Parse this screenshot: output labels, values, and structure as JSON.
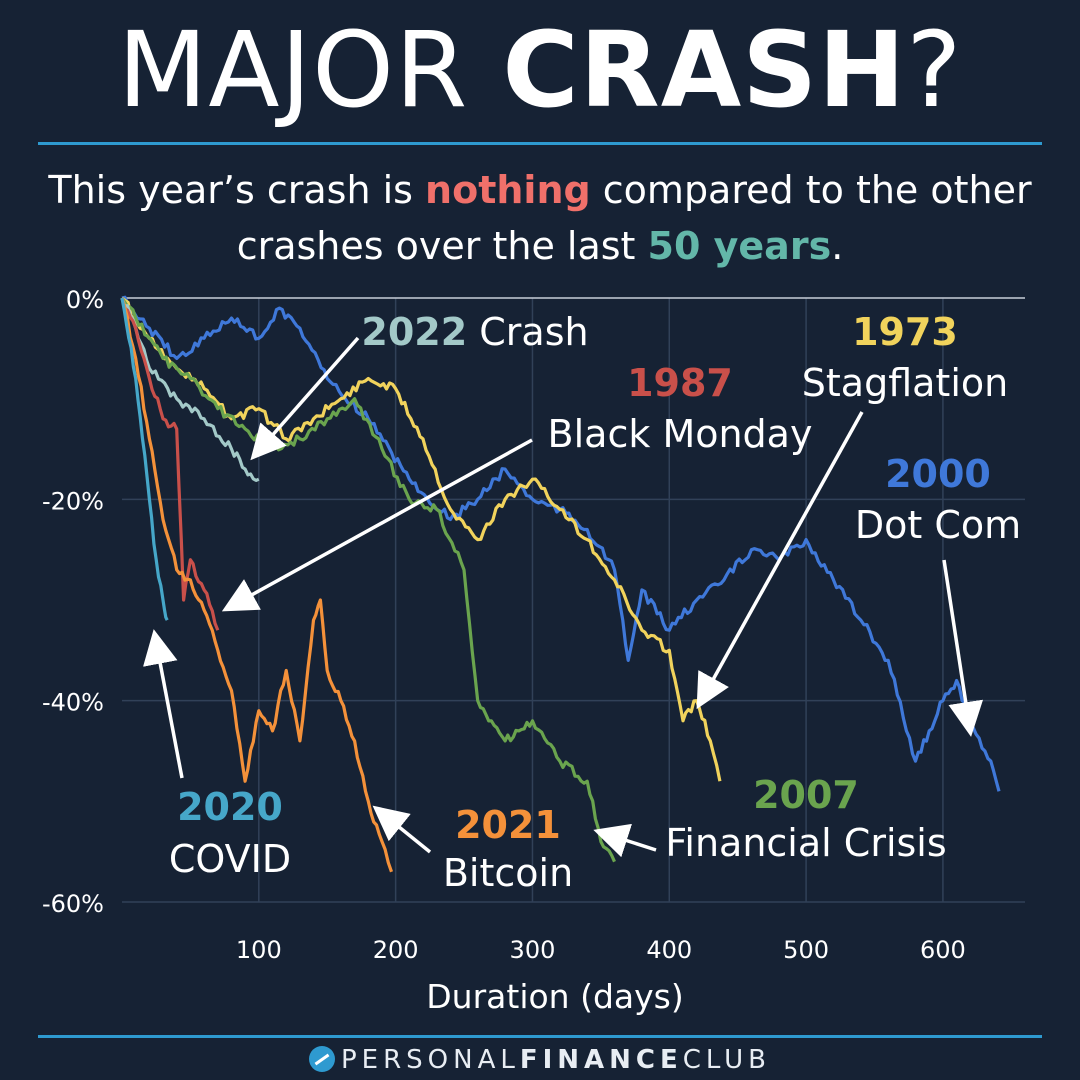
{
  "header": {
    "title_light": "MAJOR ",
    "title_bold": "CRASH",
    "title_mark": "?",
    "subtitle_1": "This year’s crash is ",
    "subtitle_highlight": "nothing",
    "subtitle_2": " compared to the other",
    "subtitle_3": "crashes over the last ",
    "subtitle_years": "50 years",
    "subtitle_end": "."
  },
  "footer": {
    "brand_light": "PERSONAL",
    "brand_bold": "FINANCE",
    "brand_end": "CLUB"
  },
  "chart_data": {
    "type": "line",
    "xlabel": "Duration (days)",
    "ylabel": "",
    "xlim": [
      0,
      660
    ],
    "ylim": [
      -60,
      0
    ],
    "x_ticks": [
      100,
      200,
      300,
      400,
      500,
      600
    ],
    "y_ticks": [
      0,
      -20,
      -40,
      -60
    ],
    "y_tick_labels": [
      "0%",
      "-20%",
      "-40%",
      "-60%"
    ],
    "grid": true,
    "series": [
      {
        "name": "2000 Dot Com",
        "year": "2000",
        "label": "Dot Com",
        "color": "#3f78d9",
        "x": [
          0,
          20,
          40,
          60,
          80,
          100,
          115,
          130,
          150,
          180,
          210,
          240,
          260,
          280,
          300,
          320,
          340,
          360,
          370,
          380,
          400,
          420,
          440,
          460,
          480,
          500,
          520,
          540,
          560,
          580,
          590,
          600,
          610,
          620,
          635,
          641
        ],
        "y": [
          0,
          -3,
          -6,
          -4,
          -2,
          -4,
          -1,
          -3,
          -8,
          -12,
          -18,
          -22,
          -20,
          -17,
          -20,
          -21,
          -23,
          -27,
          -36,
          -29,
          -33,
          -30,
          -28,
          -25,
          -26,
          -24,
          -28,
          -32,
          -36,
          -46,
          -43,
          -40,
          -38,
          -42,
          -46,
          -49
        ]
      },
      {
        "name": "1973 Stagflation",
        "year": "1973",
        "label": "Stagflation",
        "color": "#f1d35c",
        "x": [
          0,
          20,
          40,
          60,
          80,
          100,
          120,
          140,
          160,
          180,
          200,
          220,
          240,
          260,
          280,
          300,
          320,
          340,
          360,
          380,
          400,
          410,
          420,
          430,
          437
        ],
        "y": [
          0,
          -4,
          -7,
          -9,
          -12,
          -11,
          -14,
          -12,
          -10,
          -8,
          -9,
          -14,
          -21,
          -24,
          -20,
          -18,
          -21,
          -24,
          -28,
          -33,
          -35,
          -42,
          -40,
          -44,
          -48
        ]
      },
      {
        "name": "2007 Financial Crisis",
        "year": "2007",
        "label": "Financial Crisis",
        "color": "#6aa44e",
        "x": [
          0,
          10,
          30,
          50,
          70,
          90,
          110,
          130,
          150,
          170,
          190,
          210,
          230,
          250,
          260,
          270,
          280,
          290,
          300,
          320,
          340,
          350,
          360
        ],
        "y": [
          0,
          -2,
          -6,
          -8,
          -11,
          -13,
          -15,
          -14,
          -12,
          -10,
          -15,
          -20,
          -21,
          -27,
          -40,
          -42,
          -44,
          -43,
          -42,
          -46,
          -48,
          -54,
          -56
        ]
      },
      {
        "name": "2022 Crash",
        "year": "2022",
        "label": "Crash",
        "color": "#a3c9c8",
        "x": [
          0,
          10,
          20,
          40,
          60,
          80,
          90,
          100
        ],
        "y": [
          0,
          -3,
          -7,
          -10,
          -12,
          -15,
          -17,
          -18
        ]
      },
      {
        "name": "1987 Black Monday",
        "year": "1987",
        "label": "Black Monday",
        "color": "#c9504a",
        "x": [
          0,
          10,
          20,
          30,
          40,
          45,
          50,
          60,
          70
        ],
        "y": [
          0,
          -3,
          -8,
          -12,
          -13,
          -30,
          -26,
          -29,
          -33
        ]
      },
      {
        "name": "2021 Bitcoin",
        "year": "2021",
        "label": "Bitcoin",
        "color": "#f4913a",
        "x": [
          0,
          10,
          20,
          30,
          40,
          50,
          60,
          70,
          80,
          90,
          100,
          110,
          120,
          130,
          140,
          145,
          150,
          160,
          170,
          180,
          190,
          197
        ],
        "y": [
          0,
          -6,
          -14,
          -22,
          -27,
          -28,
          -31,
          -35,
          -39,
          -48,
          -41,
          -43,
          -37,
          -44,
          -32,
          -30,
          -37,
          -40,
          -44,
          -50,
          -54,
          -57
        ]
      },
      {
        "name": "2020 COVID",
        "year": "2020",
        "label": "COVID",
        "color": "#46a7c9",
        "x": [
          0,
          5,
          10,
          15,
          20,
          25,
          30,
          33
        ],
        "y": [
          0,
          -4,
          -8,
          -14,
          -20,
          -26,
          -30,
          -32
        ]
      }
    ]
  }
}
